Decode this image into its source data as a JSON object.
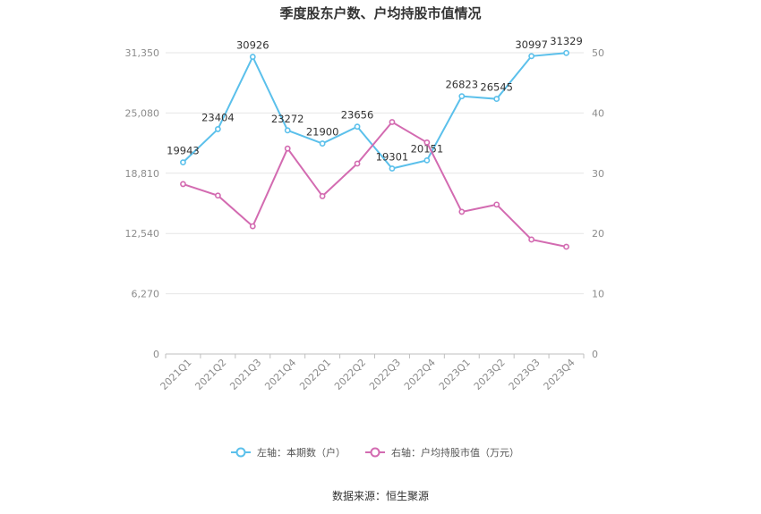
{
  "chart_data": {
    "type": "line",
    "title": "季度股东户数、户均持股市值情况",
    "categories": [
      "2021Q1",
      "2021Q2",
      "2021Q3",
      "2021Q4",
      "2022Q1",
      "2022Q2",
      "2022Q3",
      "2022Q4",
      "2023Q1",
      "2023Q2",
      "2023Q3",
      "2023Q4"
    ],
    "left_axis": {
      "ticks": [
        "0",
        "6,270",
        "12,540",
        "18,810",
        "25,080",
        "31,350"
      ],
      "min": 0,
      "max": 31350
    },
    "right_axis": {
      "ticks": [
        "0",
        "10",
        "20",
        "30",
        "40",
        "50"
      ],
      "min": 0,
      "max": 50
    },
    "grid": true,
    "legend_position": "bottom",
    "series": [
      {
        "name": "左轴：本期数（户）",
        "axis": "left",
        "color": "#5bc0eb",
        "values": [
          19943,
          23404,
          30926,
          23272,
          21900,
          23656,
          19301,
          20151,
          26823,
          26545,
          30997,
          31329
        ],
        "labels": [
          "19943",
          "23404",
          "30926",
          "23272",
          "21900",
          "23656",
          "19301",
          "20151",
          "26823",
          "26545",
          "30997",
          "31329"
        ]
      },
      {
        "name": "右轴：户均持股市值（万元）",
        "axis": "right",
        "color": "#d36bb1",
        "values": [
          28.2,
          26.3,
          21.2,
          34.1,
          26.2,
          31.6,
          38.5,
          35.1,
          23.6,
          24.8,
          19.0,
          17.8
        ]
      }
    ],
    "source": "数据来源：恒生聚源"
  }
}
